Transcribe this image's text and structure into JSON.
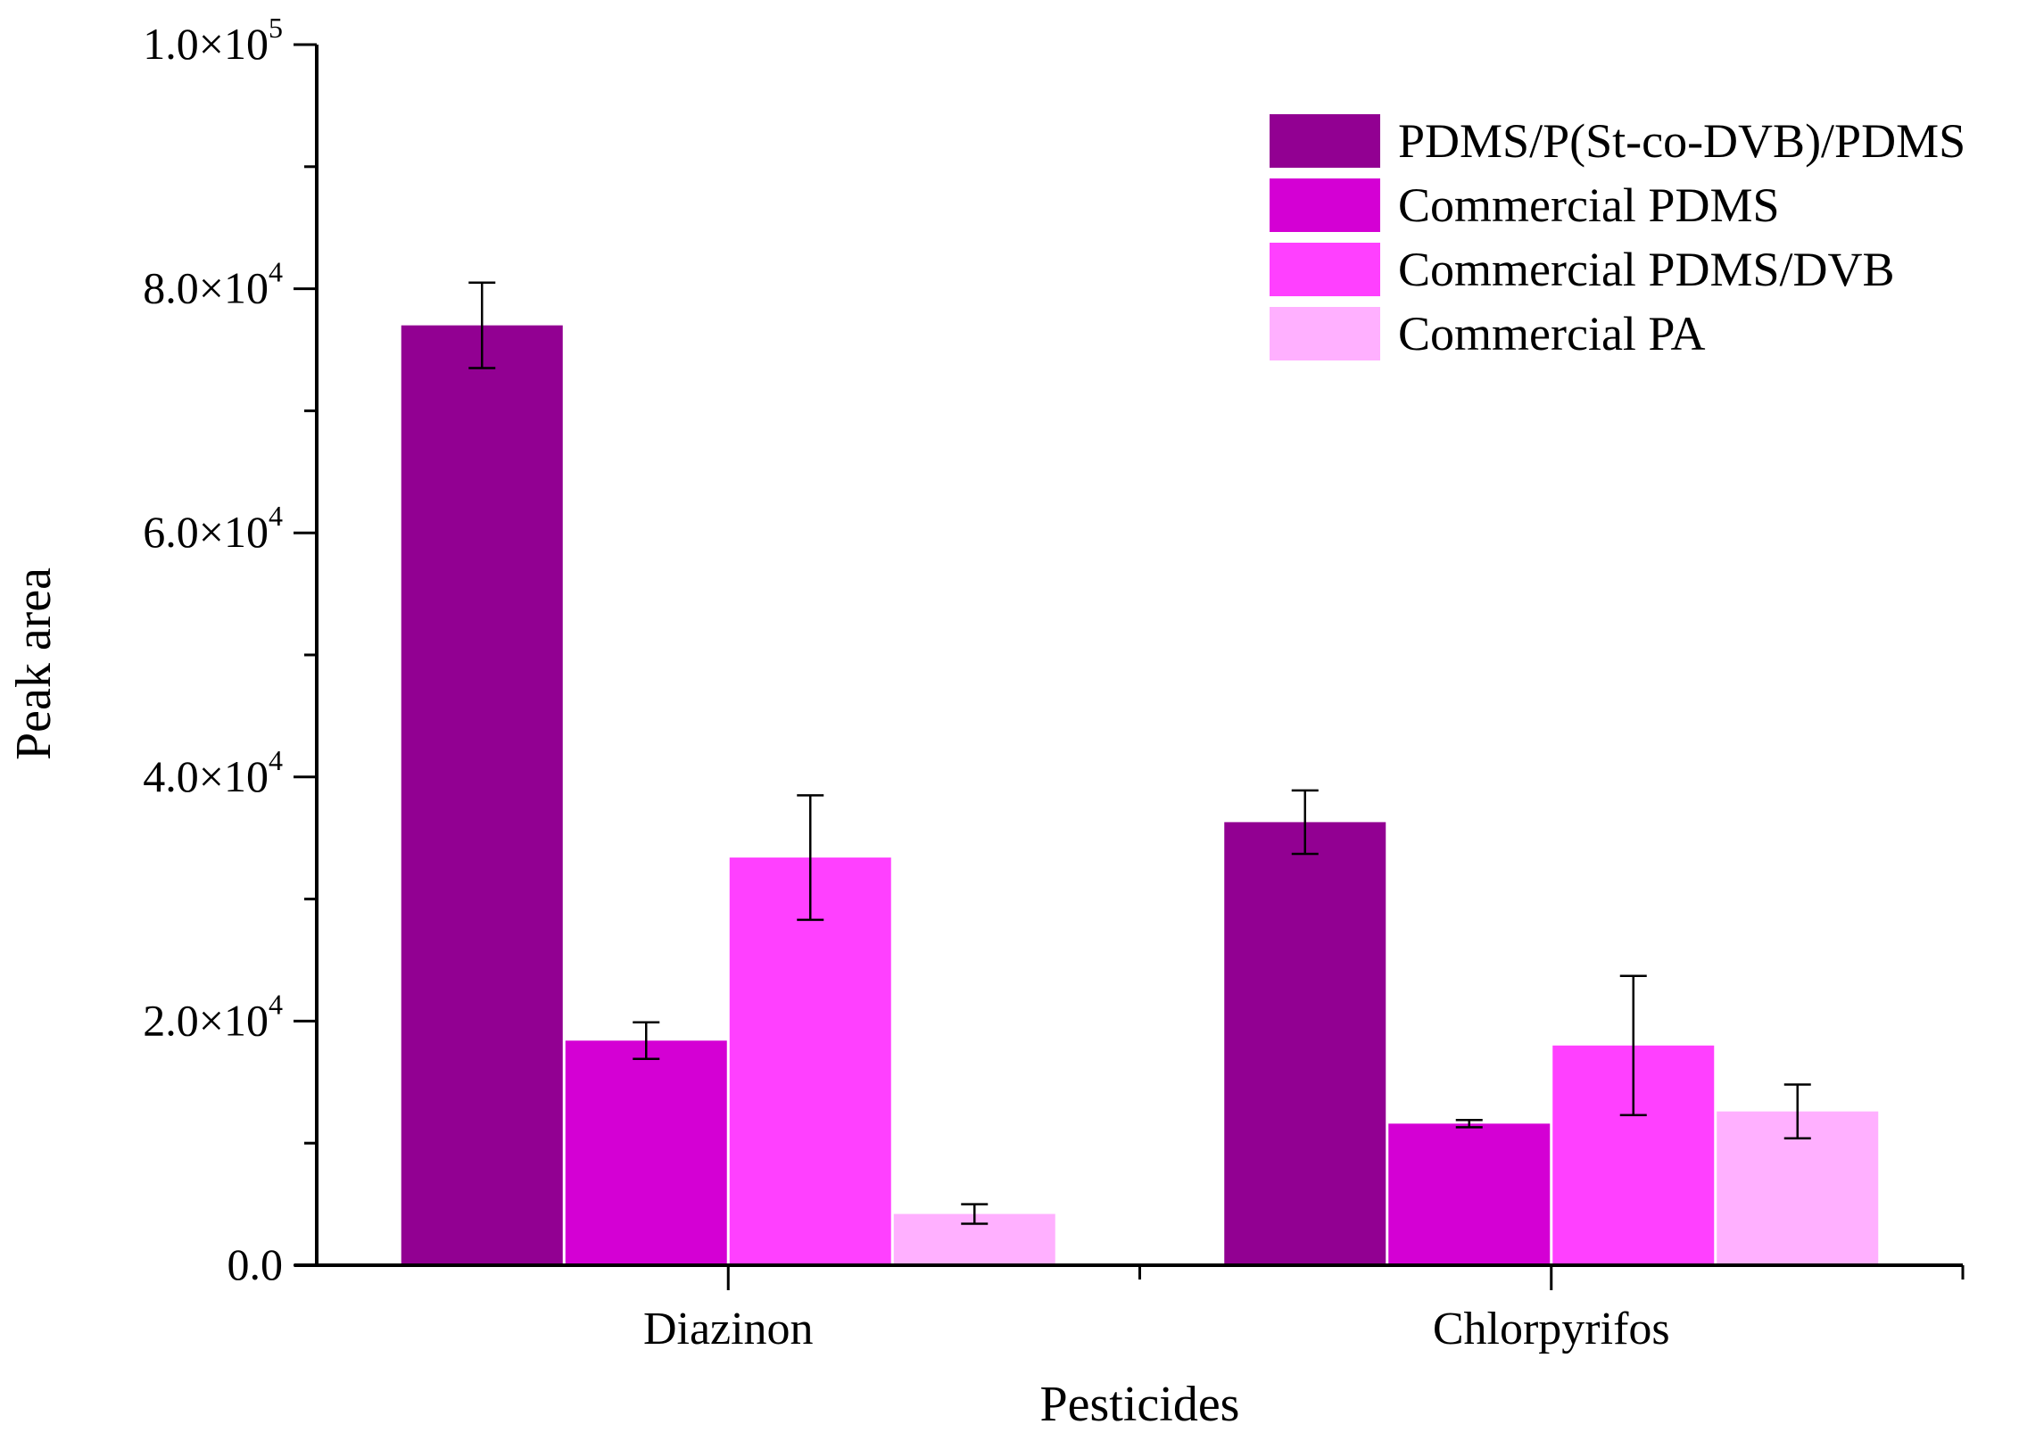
{
  "chart_data": {
    "type": "bar",
    "title": "",
    "xlabel": "Pesticides",
    "ylabel": "Peak area",
    "ylim": [
      0,
      100000
    ],
    "categories": [
      "Diazinon",
      "Chlorpyrifos"
    ],
    "y_ticks": [
      {
        "value": 0,
        "mantissa": "0.0",
        "exponent": ""
      },
      {
        "value": 20000,
        "mantissa": "2.0×10",
        "exponent": "4"
      },
      {
        "value": 40000,
        "mantissa": "4.0×10",
        "exponent": "4"
      },
      {
        "value": 60000,
        "mantissa": "6.0×10",
        "exponent": "4"
      },
      {
        "value": 80000,
        "mantissa": "8.0×10",
        "exponent": "4"
      },
      {
        "value": 100000,
        "mantissa": "1.0×10",
        "exponent": "5"
      }
    ],
    "minor_tick_step": 10000,
    "series": [
      {
        "name": "PDMS/P(St-co-DVB)/PDMS",
        "color": "#920092",
        "values": [
          77000,
          36300
        ],
        "errors": [
          3500,
          2600
        ]
      },
      {
        "name": "Commercial PDMS",
        "color": "#d400d4",
        "values": [
          18400,
          11600
        ],
        "errors": [
          1500,
          300
        ]
      },
      {
        "name": "Commercial PDMS/DVB",
        "color": "#ff40ff",
        "values": [
          33400,
          18000
        ],
        "errors": [
          5100,
          5700
        ]
      },
      {
        "name": "Commercial PA",
        "color": "#ffb0ff",
        "values": [
          4200,
          12600
        ],
        "errors": [
          800,
          2200
        ]
      }
    ],
    "legend_position": "top-right",
    "grid": false
  }
}
